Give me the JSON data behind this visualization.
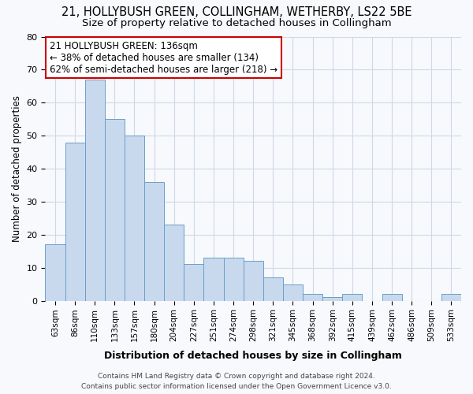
{
  "title1": "21, HOLLYBUSH GREEN, COLLINGHAM, WETHERBY, LS22 5BE",
  "title2": "Size of property relative to detached houses in Collingham",
  "xlabel": "Distribution of detached houses by size in Collingham",
  "ylabel": "Number of detached properties",
  "categories": [
    "63sqm",
    "86sqm",
    "110sqm",
    "133sqm",
    "157sqm",
    "180sqm",
    "204sqm",
    "227sqm",
    "251sqm",
    "274sqm",
    "298sqm",
    "321sqm",
    "345sqm",
    "368sqm",
    "392sqm",
    "415sqm",
    "439sqm",
    "462sqm",
    "486sqm",
    "509sqm",
    "533sqm"
  ],
  "values": [
    17,
    48,
    67,
    55,
    50,
    36,
    23,
    11,
    13,
    13,
    12,
    7,
    5,
    2,
    1,
    2,
    0,
    2,
    0,
    0,
    2
  ],
  "bar_color": "#c8d9ee",
  "bar_edge_color": "#6b9fc8",
  "ylim": [
    0,
    80
  ],
  "yticks": [
    0,
    10,
    20,
    30,
    40,
    50,
    60,
    70,
    80
  ],
  "annotation_line1": "21 HOLLYBUSH GREEN: 136sqm",
  "annotation_line2": "← 38% of detached houses are smaller (134)",
  "annotation_line3": "62% of semi-detached houses are larger (218) →",
  "annotation_box_color": "#ffffff",
  "annotation_box_edge_color": "#cc0000",
  "footer_line1": "Contains HM Land Registry data © Crown copyright and database right 2024.",
  "footer_line2": "Contains public sector information licensed under the Open Government Licence v3.0.",
  "bg_color": "#f7f9fc",
  "plot_bg_color": "#f7f9fc",
  "grid_color": "#d0d8e8",
  "title_fontsize": 10.5,
  "subtitle_fontsize": 9.5,
  "tick_fontsize": 7.5,
  "ylabel_fontsize": 8.5,
  "xlabel_fontsize": 9,
  "annotation_fontsize": 8.5,
  "footer_fontsize": 6.5
}
